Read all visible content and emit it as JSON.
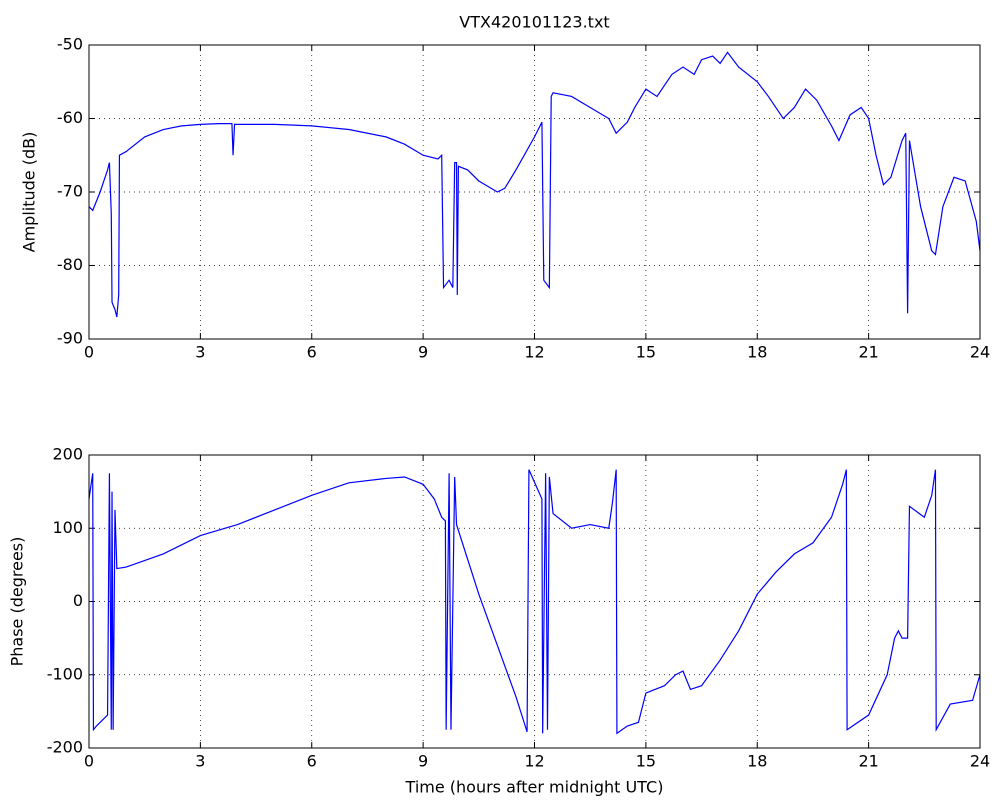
{
  "chart_data": [
    {
      "type": "line",
      "title": "VTX420101123.txt",
      "ylabel": "Amplitude (dB)",
      "color": "#0000ff",
      "grid": true,
      "xlim": [
        0,
        24
      ],
      "xticks": [
        0,
        3,
        6,
        9,
        12,
        15,
        18,
        21,
        24
      ],
      "ylim": [
        -90,
        -50
      ],
      "yticks": [
        -90,
        -80,
        -70,
        -60,
        -50
      ],
      "x": [
        0,
        0.1,
        0.3,
        0.5,
        0.55,
        0.6,
        0.62,
        0.7,
        0.75,
        0.8,
        0.82,
        1.0,
        1.5,
        2.0,
        2.5,
        3,
        3.5,
        3.85,
        3.88,
        3.92,
        4.5,
        5,
        6,
        7,
        8,
        8.5,
        9,
        9.4,
        9.5,
        9.55,
        9.7,
        9.8,
        9.85,
        9.9,
        9.92,
        9.95,
        10.2,
        10.5,
        11,
        11.2,
        11.5,
        12,
        12.2,
        12.25,
        12.4,
        12.45,
        12.5,
        13,
        13.5,
        14,
        14.2,
        14.5,
        14.7,
        15,
        15.3,
        15.7,
        16,
        16.3,
        16.5,
        16.8,
        17,
        17.2,
        17.5,
        18,
        18.3,
        18.7,
        19,
        19.3,
        19.6,
        20,
        20.2,
        20.5,
        20.8,
        21,
        21.2,
        21.4,
        21.6,
        21.9,
        22,
        22.05,
        22.1,
        22.4,
        22.7,
        22.8,
        23,
        23.3,
        23.6,
        23.9,
        24
      ],
      "values": [
        -72,
        -72.5,
        -70,
        -67,
        -66,
        -73,
        -85,
        -86,
        -87,
        -84,
        -65,
        -64.5,
        -62.5,
        -61.5,
        -61,
        -60.8,
        -60.7,
        -60.7,
        -65,
        -60.8,
        -60.8,
        -60.8,
        -61,
        -61.5,
        -62.5,
        -63.5,
        -65,
        -65.5,
        -65,
        -83,
        -82,
        -83,
        -66,
        -66,
        -84,
        -66.5,
        -67,
        -68.5,
        -70,
        -69.5,
        -67,
        -62.5,
        -60.5,
        -82,
        -83,
        -57,
        -56.5,
        -57,
        -58.5,
        -60,
        -62,
        -60.5,
        -58.5,
        -56,
        -57,
        -54,
        -53,
        -54,
        -52,
        -51.5,
        -52.5,
        -51,
        -53,
        -55,
        -57,
        -60,
        -58.5,
        -56,
        -57.5,
        -61,
        -63,
        -59.5,
        -58.5,
        -60,
        -65,
        -69,
        -68,
        -63,
        -62,
        -86.5,
        -63,
        -72,
        -78,
        -78.5,
        -72,
        -68,
        -68.5,
        -74,
        -78
      ]
    },
    {
      "type": "line",
      "ylabel": "Phase (degrees)",
      "xlabel": "Time (hours after midnight UTC)",
      "color": "#0000ff",
      "grid": true,
      "xlim": [
        0,
        24
      ],
      "xticks": [
        0,
        3,
        6,
        9,
        12,
        15,
        18,
        21,
        24
      ],
      "ylim": [
        -200,
        200
      ],
      "yticks": [
        -200,
        -100,
        0,
        100,
        200
      ],
      "x": [
        0,
        0.1,
        0.12,
        0.2,
        0.4,
        0.5,
        0.55,
        0.6,
        0.62,
        0.65,
        0.7,
        0.75,
        1,
        2,
        3,
        4,
        5,
        6,
        7,
        8,
        8.5,
        9,
        9.3,
        9.5,
        9.6,
        9.62,
        9.7,
        9.75,
        9.85,
        9.9,
        10.5,
        11,
        11.5,
        11.8,
        11.85,
        12.2,
        12.22,
        12.3,
        12.35,
        12.4,
        12.5,
        13,
        13.5,
        14,
        14.1,
        14.2,
        14.22,
        14.5,
        14.8,
        15,
        15.5,
        15.8,
        16,
        16.2,
        16.5,
        17,
        17.5,
        18,
        18.5,
        19,
        19.5,
        20,
        20.3,
        20.4,
        20.42,
        21,
        21.5,
        21.7,
        21.8,
        21.9,
        22.05,
        22.1,
        22.5,
        22.7,
        22.8,
        22.82,
        23.2,
        23.8,
        24
      ],
      "values": [
        140,
        175,
        -175,
        -170,
        -160,
        -155,
        175,
        -175,
        150,
        -175,
        125,
        45,
        47,
        65,
        90,
        105,
        125,
        145,
        162,
        168,
        170,
        160,
        140,
        115,
        110,
        -175,
        175,
        -175,
        170,
        105,
        10,
        -60,
        -130,
        -178,
        180,
        140,
        -180,
        175,
        -175,
        170,
        120,
        100,
        105,
        100,
        135,
        180,
        -180,
        -170,
        -165,
        -125,
        -115,
        -100,
        -95,
        -120,
        -115,
        -80,
        -40,
        10,
        40,
        65,
        80,
        115,
        160,
        180,
        -175,
        -155,
        -100,
        -50,
        -40,
        -50,
        -50,
        130,
        115,
        145,
        180,
        -175,
        -140,
        -135,
        -100
      ]
    }
  ]
}
